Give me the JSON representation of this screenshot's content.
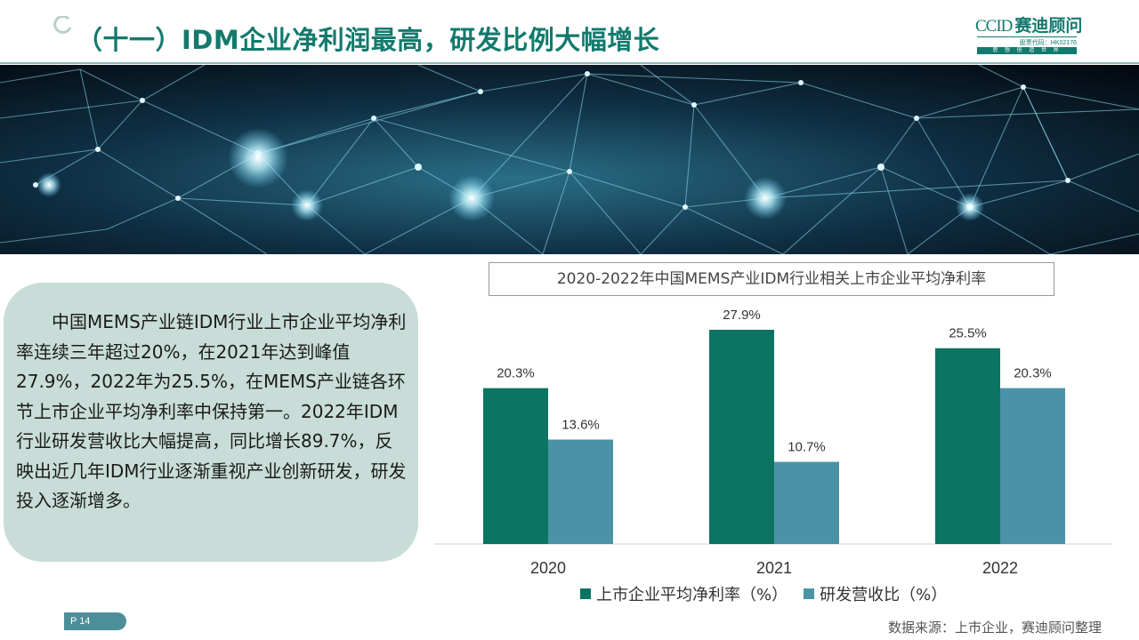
{
  "header": {
    "title": "（十一）IDM企业净利润最高，研发比例大幅增长",
    "logo": {
      "english": "CCID",
      "chinese": "赛迪顾问",
      "stock_code": "股票代码：HK02176",
      "tagline": "思 想 创 造 世 界"
    }
  },
  "banner": {
    "description_icon": "network-banner-image"
  },
  "summary": {
    "text": "中国MEMS产业链IDM行业上市企业平均净利率连续三年超过20%，在2021年达到峰值27.9%，2022年为25.5%，在MEMS产业链各环节上市企业平均净利率中保持第一。2022年IDM行业研发营收比大幅提高，同比增长89.7%，反映出近几年IDM行业逐渐重视产业创新研发，研发投入逐渐增多。"
  },
  "chart_data": {
    "type": "bar",
    "title": "2020-2022年中国MEMS产业IDM行业相关上市企业平均净利率",
    "categories": [
      "2020",
      "2021",
      "2022"
    ],
    "series": [
      {
        "name": "上市企业平均净利率（%）",
        "values": [
          20.3,
          27.9,
          25.5
        ],
        "labels": [
          "20.3%",
          "27.9%",
          "25.5%"
        ],
        "color": "#0d7463"
      },
      {
        "name": "研发营收比（%）",
        "values": [
          13.6,
          10.7,
          20.3
        ],
        "labels": [
          "13.6%",
          "10.7%",
          "20.3%"
        ],
        "color": "#4a93a6"
      }
    ],
    "ylim": [
      0,
      30
    ],
    "grid": false,
    "legend_position": "bottom"
  },
  "footer": {
    "page_label": "P 14",
    "source": "数据来源：上市企业，赛迪顾问整理"
  },
  "colors": {
    "brand": "#127a6d",
    "text_box_bg": "#c9ddd8",
    "badge": "#4e8e9a"
  }
}
